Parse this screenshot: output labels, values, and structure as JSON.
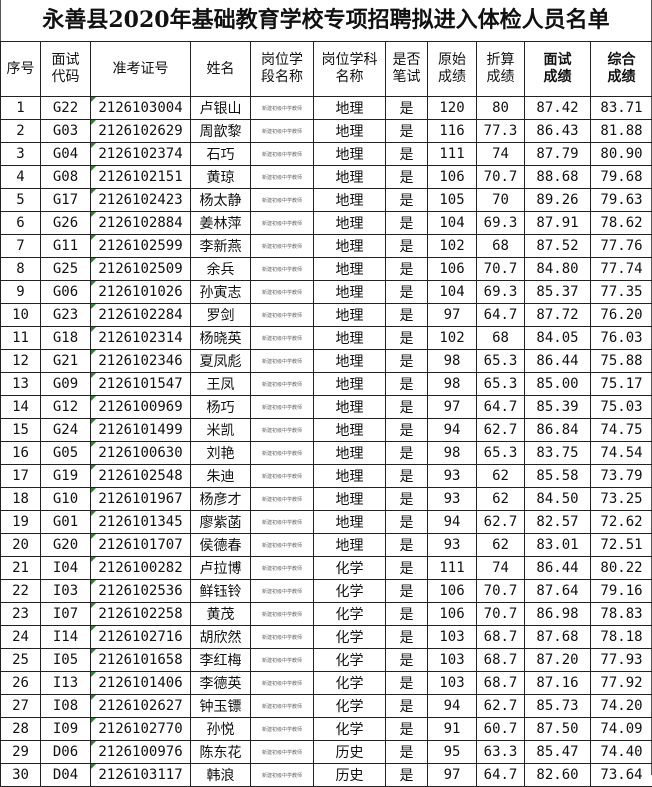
{
  "title": "永善县2020年基础教育学校专项招聘拟进入体检人员名单",
  "headers": {
    "seq": "序号",
    "code": "面试\n代码",
    "ticket": "准考证号",
    "name": "姓名",
    "stage": "岗位学\n段名称",
    "subject": "岗位学科\n名称",
    "written": "是否\n笔试",
    "raw": "原始\n成绩",
    "converted": "折算\n成绩",
    "interview": "面试\n成绩",
    "total": "综合\n成绩"
  },
  "stage_text": "新建初级中学教师",
  "rows": [
    [
      "1",
      "G22",
      "2126103004",
      "卢银山",
      "地理",
      "是",
      "120",
      "80",
      "87.42",
      "83.71"
    ],
    [
      "2",
      "G03",
      "2126102629",
      "周歆黎",
      "地理",
      "是",
      "116",
      "77.3",
      "86.43",
      "81.88"
    ],
    [
      "3",
      "G04",
      "2126102374",
      "石巧",
      "地理",
      "是",
      "111",
      "74",
      "87.79",
      "80.90"
    ],
    [
      "4",
      "G08",
      "2126102151",
      "黄琼",
      "地理",
      "是",
      "106",
      "70.7",
      "88.68",
      "79.68"
    ],
    [
      "5",
      "G17",
      "2126102423",
      "杨太静",
      "地理",
      "是",
      "105",
      "70",
      "89.26",
      "79.63"
    ],
    [
      "6",
      "G26",
      "2126102884",
      "姜林萍",
      "地理",
      "是",
      "104",
      "69.3",
      "87.91",
      "78.62"
    ],
    [
      "7",
      "G11",
      "2126102599",
      "李新燕",
      "地理",
      "是",
      "102",
      "68",
      "87.52",
      "77.76"
    ],
    [
      "8",
      "G25",
      "2126102509",
      "余兵",
      "地理",
      "是",
      "106",
      "70.7",
      "84.80",
      "77.74"
    ],
    [
      "9",
      "G06",
      "2126101026",
      "孙寅志",
      "地理",
      "是",
      "104",
      "69.3",
      "85.37",
      "77.35"
    ],
    [
      "10",
      "G23",
      "2126102284",
      "罗剑",
      "地理",
      "是",
      "97",
      "64.7",
      "87.72",
      "76.20"
    ],
    [
      "11",
      "G18",
      "2126102314",
      "杨晓英",
      "地理",
      "是",
      "102",
      "68",
      "84.05",
      "76.03"
    ],
    [
      "12",
      "G21",
      "2126102346",
      "夏凤彪",
      "地理",
      "是",
      "98",
      "65.3",
      "86.44",
      "75.88"
    ],
    [
      "13",
      "G09",
      "2126101547",
      "王凤",
      "地理",
      "是",
      "98",
      "65.3",
      "85.00",
      "75.17"
    ],
    [
      "14",
      "G12",
      "2126100969",
      "杨巧",
      "地理",
      "是",
      "97",
      "64.7",
      "85.39",
      "75.03"
    ],
    [
      "15",
      "G24",
      "2126101499",
      "米凯",
      "地理",
      "是",
      "94",
      "62.7",
      "86.84",
      "74.75"
    ],
    [
      "16",
      "G05",
      "2126100630",
      "刘艳",
      "地理",
      "是",
      "98",
      "65.3",
      "83.75",
      "74.54"
    ],
    [
      "17",
      "G19",
      "2126102548",
      "朱迪",
      "地理",
      "是",
      "93",
      "62",
      "85.58",
      "73.79"
    ],
    [
      "18",
      "G10",
      "2126101967",
      "杨彦才",
      "地理",
      "是",
      "93",
      "62",
      "84.50",
      "73.25"
    ],
    [
      "19",
      "G01",
      "2126101345",
      "廖紫菡",
      "地理",
      "是",
      "94",
      "62.7",
      "82.57",
      "72.62"
    ],
    [
      "20",
      "G20",
      "2126101707",
      "侯德春",
      "地理",
      "是",
      "93",
      "62",
      "83.01",
      "72.51"
    ],
    [
      "21",
      "I04",
      "2126100282",
      "卢拉博",
      "化学",
      "是",
      "111",
      "74",
      "86.44",
      "80.22"
    ],
    [
      "22",
      "I03",
      "2126102536",
      "鲜钰铃",
      "化学",
      "是",
      "106",
      "70.7",
      "87.64",
      "79.16"
    ],
    [
      "23",
      "I07",
      "2126102258",
      "黄茂",
      "化学",
      "是",
      "106",
      "70.7",
      "86.98",
      "78.83"
    ],
    [
      "24",
      "I14",
      "2126102716",
      "胡欣然",
      "化学",
      "是",
      "103",
      "68.7",
      "87.68",
      "78.18"
    ],
    [
      "25",
      "I05",
      "2126101658",
      "李红梅",
      "化学",
      "是",
      "103",
      "68.7",
      "87.20",
      "77.93"
    ],
    [
      "26",
      "I13",
      "2126101406",
      "李德英",
      "化学",
      "是",
      "103",
      "68.7",
      "87.16",
      "77.92"
    ],
    [
      "27",
      "I08",
      "2126102627",
      "钟玉镖",
      "化学",
      "是",
      "94",
      "62.7",
      "85.73",
      "74.20"
    ],
    [
      "28",
      "I09",
      "2126102770",
      "孙悦",
      "化学",
      "是",
      "91",
      "60.7",
      "87.50",
      "74.09"
    ],
    [
      "29",
      "D06",
      "2126100976",
      "陈东花",
      "历史",
      "是",
      "95",
      "63.3",
      "85.47",
      "74.40"
    ],
    [
      "30",
      "D04",
      "2126103117",
      "韩浪",
      "历史",
      "是",
      "97",
      "64.7",
      "82.60",
      "73.64"
    ]
  ]
}
